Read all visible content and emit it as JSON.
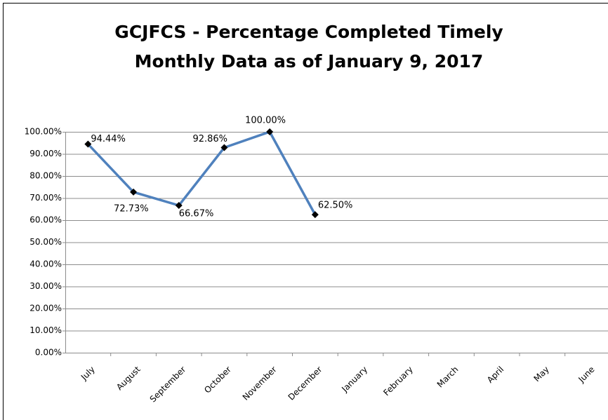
{
  "chart_data": {
    "type": "line",
    "title": "GCJFCS - Percentage Completed Timely",
    "subtitle": "Monthly Data as of January 9, 2017",
    "categories": [
      "July",
      "August",
      "September",
      "October",
      "November",
      "December",
      "January",
      "February",
      "March",
      "April",
      "May",
      "June"
    ],
    "series": [
      {
        "name": "Percentage Completed Timely",
        "color": "#4f81bd",
        "values": [
          94.44,
          72.73,
          66.67,
          92.86,
          100,
          62.5,
          null,
          null,
          null,
          null,
          null,
          null
        ],
        "value_labels": [
          "94.44%",
          "72.73%",
          "66.67%",
          "92.86%",
          "100.00%",
          "62.50%",
          null,
          null,
          null,
          null,
          null,
          null
        ]
      }
    ],
    "ylim": [
      0,
      100
    ],
    "yticks": [
      {
        "value": 0,
        "label": "0.00%"
      },
      {
        "value": 10,
        "label": "10.00%"
      },
      {
        "value": 20,
        "label": "20.00%"
      },
      {
        "value": 30,
        "label": "30.00%"
      },
      {
        "value": 40,
        "label": "40.00%"
      },
      {
        "value": 50,
        "label": "50.00%"
      },
      {
        "value": 60,
        "label": "60.00%"
      },
      {
        "value": 70,
        "label": "70.00%"
      },
      {
        "value": 80,
        "label": "80.00%"
      },
      {
        "value": 90,
        "label": "90.00%"
      },
      {
        "value": 100,
        "label": "100.00%"
      }
    ],
    "grid": true
  }
}
